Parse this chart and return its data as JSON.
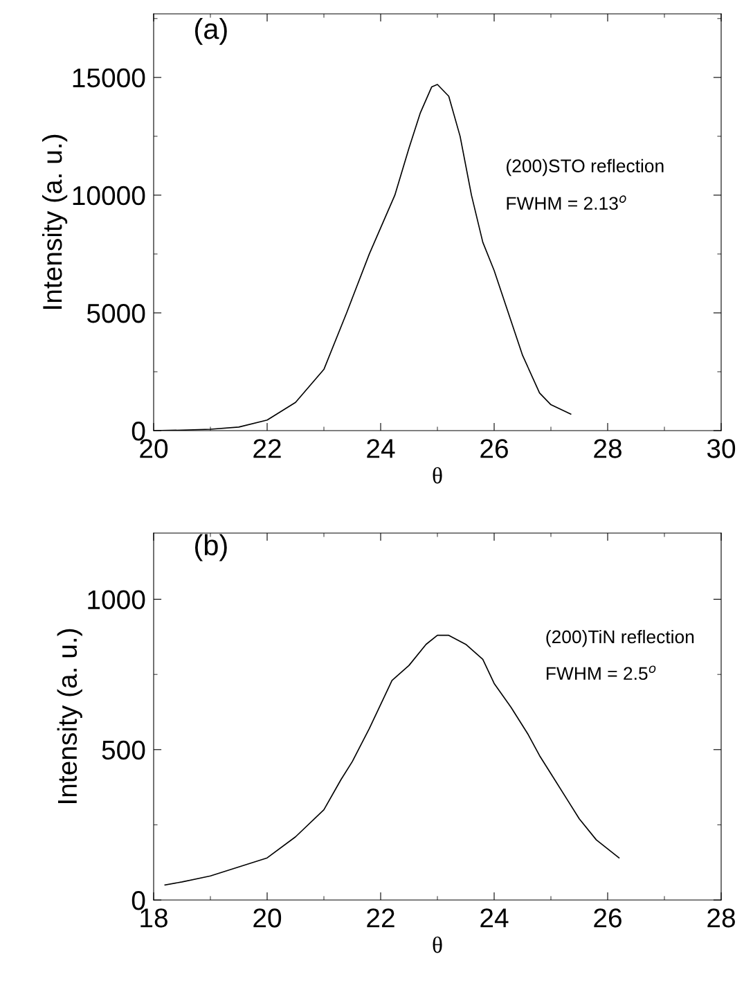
{
  "chart_data": [
    {
      "type": "line",
      "xlabel": "θ",
      "ylabel": "Intensity (a. u.)",
      "annotations": [
        "(a)",
        "(200)STO reflection",
        "FWHM = 2.13$^{o}$"
      ],
      "x": [
        20,
        20.5,
        21,
        21.5,
        22,
        22.5,
        23,
        23.4,
        23.8,
        24.25,
        24.5,
        24.7,
        24.9,
        25.0,
        25.2,
        25.4,
        25.6,
        25.8,
        26.0,
        26.25,
        26.5,
        26.8,
        27.0,
        27.35
      ],
      "series": [
        {
          "color": "#000000",
          "values": [
            0,
            20,
            60,
            150,
            450,
            1200,
            2600,
            5000,
            7500,
            10000,
            12000,
            13500,
            14600,
            14700,
            14200,
            12500,
            10000,
            8000,
            6800,
            5000,
            3200,
            1600,
            1100,
            700
          ]
        }
      ],
      "xlim": [
        20,
        30
      ],
      "xticks": [
        20,
        22,
        24,
        26,
        28,
        30
      ],
      "ylim": [
        0,
        17700
      ],
      "yticks": [
        0,
        5000,
        10000,
        15000
      ],
      "grid": false,
      "legend": false,
      "marker": "none",
      "line_style": "solid"
    },
    {
      "type": "line",
      "xlabel": "θ",
      "ylabel": "Intensity (a. u.)",
      "annotations": [
        "(b)",
        "(200)TiN reflection",
        "FWHM = 2.5$^{o}$"
      ],
      "x": [
        18.2,
        18.5,
        19,
        19.5,
        20,
        20.5,
        21,
        21.3,
        21.5,
        21.8,
        22,
        22.2,
        22.5,
        22.8,
        23,
        23.2,
        23.5,
        23.8,
        24,
        24.3,
        24.6,
        24.8,
        25,
        25.3,
        25.5,
        25.8,
        26,
        26.2
      ],
      "series": [
        {
          "color": "#000000",
          "values": [
            50,
            60,
            80,
            110,
            140,
            210,
            300,
            400,
            460,
            570,
            650,
            730,
            780,
            850,
            880,
            880,
            850,
            800,
            720,
            640,
            550,
            480,
            420,
            330,
            270,
            200,
            170,
            140
          ]
        }
      ],
      "xlim": [
        18,
        28
      ],
      "xticks": [
        18,
        20,
        22,
        24,
        26,
        28
      ],
      "ylim": [
        0,
        1220
      ],
      "yticks": [
        0,
        500,
        1000
      ],
      "grid": false,
      "legend": false,
      "marker": "none",
      "line_style": "solid"
    }
  ]
}
